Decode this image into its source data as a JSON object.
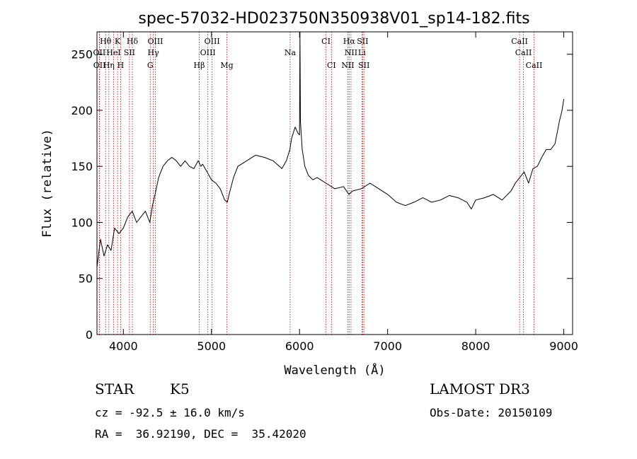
{
  "chart_data": {
    "type": "line",
    "title": "spec-57032-HD023750N350938V01_sp14-182.fits",
    "xlabel": "Wavelength (Å)",
    "ylabel": "Flux (relative)",
    "xlim": [
      3700,
      9100
    ],
    "ylim": [
      0,
      270
    ],
    "xticks": [
      4000,
      5000,
      6000,
      7000,
      8000,
      9000
    ],
    "yticks": [
      0,
      50,
      100,
      150,
      200,
      250
    ],
    "grid": false,
    "series": [
      {
        "x": [
          3700,
          3740,
          3780,
          3820,
          3860,
          3900,
          3950,
          4000,
          4050,
          4100,
          4150,
          4200,
          4250,
          4300,
          4330,
          4360,
          4400,
          4450,
          4500,
          4550,
          4600,
          4650,
          4700,
          4750,
          4800,
          4850,
          4880,
          4900,
          4950,
          5000,
          5050,
          5100,
          5150,
          5180,
          5200,
          5250,
          5300,
          5400,
          5500,
          5600,
          5700,
          5800,
          5850,
          5890,
          5910,
          5950,
          5980,
          6000,
          6005,
          6010,
          6030,
          6060,
          6100,
          6150,
          6200,
          6300,
          6400,
          6500,
          6560,
          6600,
          6700,
          6800,
          6900,
          7000,
          7100,
          7200,
          7300,
          7400,
          7500,
          7600,
          7700,
          7800,
          7900,
          7950,
          8000,
          8100,
          8200,
          8300,
          8400,
          8450,
          8500,
          8550,
          8600,
          8650,
          8700,
          8750,
          8800,
          8850,
          8900,
          8950,
          8980,
          9000
        ],
        "y": [
          60,
          85,
          70,
          80,
          75,
          95,
          90,
          95,
          105,
          110,
          100,
          105,
          110,
          100,
          115,
          125,
          140,
          150,
          155,
          158,
          155,
          150,
          155,
          150,
          148,
          155,
          150,
          152,
          145,
          138,
          135,
          130,
          120,
          118,
          125,
          140,
          150,
          155,
          160,
          158,
          155,
          148,
          155,
          165,
          175,
          185,
          180,
          178,
          270,
          190,
          165,
          150,
          142,
          138,
          140,
          135,
          130,
          132,
          125,
          128,
          130,
          135,
          130,
          125,
          118,
          115,
          118,
          122,
          118,
          120,
          124,
          122,
          118,
          112,
          120,
          122,
          125,
          120,
          128,
          135,
          140,
          145,
          135,
          148,
          150,
          158,
          165,
          165,
          170,
          190,
          200,
          210
        ]
      }
    ],
    "lines": [
      {
        "label": "Hθ",
        "x": 3798,
        "row": 1
      },
      {
        "label": "K",
        "x": 3934,
        "row": 1
      },
      {
        "label": "Hδ",
        "x": 4102,
        "row": 1
      },
      {
        "label": "OIII",
        "x": 4363,
        "row": 1
      },
      {
        "label": "OIII",
        "x": 5007,
        "row": 1
      },
      {
        "label": "CI",
        "x": 6300,
        "row": 1
      },
      {
        "label": "Hα",
        "x": 6563,
        "row": 1
      },
      {
        "label": "SII",
        "x": 6716,
        "row": 1
      },
      {
        "label": "CaII",
        "x": 8498,
        "row": 1
      },
      {
        "label": "OII",
        "x": 3727,
        "row": 2
      },
      {
        "label": "HeI",
        "x": 3889,
        "row": 2
      },
      {
        "label": "SII",
        "x": 4069,
        "row": 2
      },
      {
        "label": "Hγ",
        "x": 4340,
        "row": 2
      },
      {
        "label": "OIII",
        "x": 4959,
        "row": 2
      },
      {
        "label": "Na",
        "x": 5893,
        "row": 2
      },
      {
        "label": "NII",
        "x": 6584,
        "row": 2
      },
      {
        "label": "Li",
        "x": 6708,
        "row": 2
      },
      {
        "label": "CaII",
        "x": 8542,
        "row": 2
      },
      {
        "label": "OII",
        "x": 3729,
        "row": 3
      },
      {
        "label": "Hη",
        "x": 3835,
        "row": 3
      },
      {
        "label": "H",
        "x": 3969,
        "row": 3
      },
      {
        "label": "G",
        "x": 4305,
        "row": 3
      },
      {
        "label": "Hβ",
        "x": 4861,
        "row": 3
      },
      {
        "label": "Mg",
        "x": 5175,
        "row": 3
      },
      {
        "label": "CI",
        "x": 6363,
        "row": 3
      },
      {
        "label": "NII",
        "x": 6548,
        "row": 3
      },
      {
        "label": "SII",
        "x": 6731,
        "row": 3
      },
      {
        "label": "CaII",
        "x": 8662,
        "row": 3
      }
    ]
  },
  "info": {
    "class": "STAR",
    "subclass": "K5",
    "survey": "LAMOST DR3",
    "cz": "cz = -92.5 ± 16.0 km/s",
    "obs_date": "Obs-Date: 20150109",
    "radec": "RA =  36.92190, DEC =  35.42020"
  },
  "colors": {
    "line_marker": "#cc0000",
    "spectrum": "#000000"
  }
}
